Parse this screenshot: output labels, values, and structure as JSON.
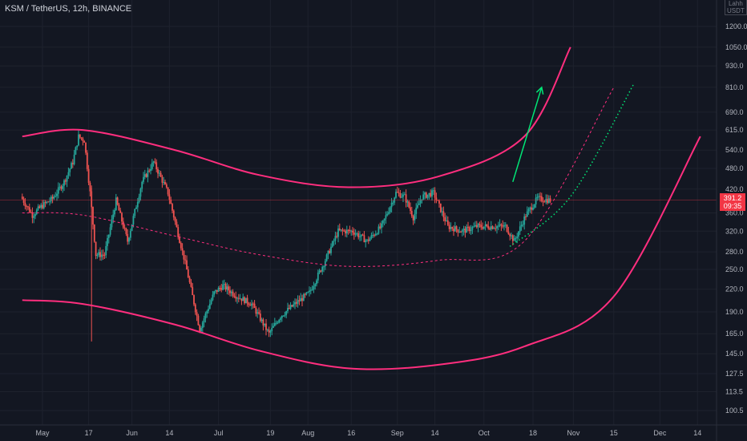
{
  "header": {
    "title": "KSM / TetherUS, 12h, BINANCE",
    "unit_line1": "Lahh",
    "unit_line2": "USDT"
  },
  "price_tag": {
    "price": "391.2",
    "countdown": "09:35"
  },
  "colors": {
    "background": "#131722",
    "up_candle": "#26a69a",
    "down_candle": "#ef5350",
    "channel": "#ff2e7e",
    "arrow": "#00e676",
    "dotted_green": "#00e676",
    "price_tag": "#f23645",
    "axis_text": "#b2b5be"
  },
  "chart_data": {
    "type": "candlestick",
    "symbol": "KSM / TetherUS",
    "interval": "12h",
    "exchange": "BINANCE",
    "y_scale": "log",
    "y_ticks": [
      "1200.0",
      "1050.0",
      "930.0",
      "810.0",
      "690.0",
      "615.0",
      "540.0",
      "480.0",
      "420.0",
      "360.0",
      "320.0",
      "280.0",
      "250.0",
      "220.0",
      "190.0",
      "165.0",
      "145.0",
      "127.5",
      "113.5",
      "100.5"
    ],
    "x_ticks": [
      "May",
      "17",
      "Jun",
      "14",
      "Jul",
      "19",
      "Aug",
      "16",
      "Sep",
      "14",
      "Oct",
      "18",
      "Nov",
      "15",
      "Dec",
      "14"
    ],
    "x_tick_dates": [
      "2021-05-01",
      "2021-05-17",
      "2021-06-01",
      "2021-06-14",
      "2021-07-01",
      "2021-07-19",
      "2021-08-01",
      "2021-08-16",
      "2021-09-01",
      "2021-09-14",
      "2021-10-01",
      "2021-10-18",
      "2021-11-01",
      "2021-11-15",
      "2021-12-01",
      "2021-12-14"
    ],
    "price_path": [
      [
        "2021-04-24",
        400
      ],
      [
        "2021-04-28",
        355
      ],
      [
        "2021-05-01",
        375
      ],
      [
        "2021-05-05",
        395
      ],
      [
        "2021-05-09",
        440
      ],
      [
        "2021-05-12",
        500
      ],
      [
        "2021-05-14",
        590
      ],
      [
        "2021-05-16",
        575
      ],
      [
        "2021-05-18",
        410
      ],
      [
        "2021-05-20",
        275
      ],
      [
        "2021-05-23",
        275
      ],
      [
        "2021-05-27",
        390
      ],
      [
        "2021-05-31",
        300
      ],
      [
        "2021-06-05",
        440
      ],
      [
        "2021-06-09",
        500
      ],
      [
        "2021-06-14",
        410
      ],
      [
        "2021-06-20",
        260
      ],
      [
        "2021-06-25",
        170
      ],
      [
        "2021-06-30",
        215
      ],
      [
        "2021-07-03",
        225
      ],
      [
        "2021-07-08",
        210
      ],
      [
        "2021-07-13",
        200
      ],
      [
        "2021-07-19",
        165
      ],
      [
        "2021-07-23",
        185
      ],
      [
        "2021-07-28",
        200
      ],
      [
        "2021-08-02",
        215
      ],
      [
        "2021-08-07",
        260
      ],
      [
        "2021-08-12",
        320
      ],
      [
        "2021-08-17",
        320
      ],
      [
        "2021-08-22",
        300
      ],
      [
        "2021-08-27",
        330
      ],
      [
        "2021-09-01",
        410
      ],
      [
        "2021-09-04",
        400
      ],
      [
        "2021-09-07",
        350
      ],
      [
        "2021-09-10",
        400
      ],
      [
        "2021-09-14",
        410
      ],
      [
        "2021-09-19",
        330
      ],
      [
        "2021-09-24",
        320
      ],
      [
        "2021-09-29",
        330
      ],
      [
        "2021-10-04",
        330
      ],
      [
        "2021-10-09",
        330
      ],
      [
        "2021-10-12",
        300
      ],
      [
        "2021-10-16",
        355
      ],
      [
        "2021-10-20",
        395
      ],
      [
        "2021-10-24",
        391.2
      ]
    ],
    "last_price": 391.2,
    "annotations": [
      {
        "type": "arc",
        "name": "upper channel",
        "points": [
          [
            "2021-04-24",
            590
          ],
          [
            "2021-05-15",
            615
          ],
          [
            "2021-06-16",
            540
          ],
          [
            "2021-07-15",
            460
          ],
          [
            "2021-08-15",
            425
          ],
          [
            "2021-09-15",
            455
          ],
          [
            "2021-10-15",
            590
          ],
          [
            "2021-10-31",
            1050
          ]
        ]
      },
      {
        "type": "arc",
        "name": "lower channel",
        "points": [
          [
            "2021-04-24",
            205
          ],
          [
            "2021-05-15",
            200
          ],
          [
            "2021-06-16",
            175
          ],
          [
            "2021-07-15",
            148
          ],
          [
            "2021-08-15",
            132
          ],
          [
            "2021-09-15",
            135
          ],
          [
            "2021-10-15",
            152
          ],
          [
            "2021-11-15",
            210
          ],
          [
            "2021-12-15",
            590
          ]
        ]
      },
      {
        "type": "arc",
        "name": "dashed midline",
        "points": [
          [
            "2021-04-24",
            360
          ],
          [
            "2021-05-15",
            355
          ],
          [
            "2021-06-16",
            310
          ],
          [
            "2021-07-15",
            275
          ],
          [
            "2021-08-15",
            255
          ],
          [
            "2021-09-15",
            265
          ],
          [
            "2021-10-15",
            300
          ],
          [
            "2021-11-15",
            810
          ]
        ]
      },
      {
        "type": "dotted",
        "name": "projection",
        "points": [
          [
            "2021-10-10",
            290
          ],
          [
            "2021-10-31",
            400
          ],
          [
            "2021-11-22",
            830
          ]
        ]
      },
      {
        "type": "arrow",
        "name": "up arrow",
        "from": [
          "2021-10-11",
          440
        ],
        "to": [
          "2021-10-21",
          810
        ]
      }
    ]
  }
}
